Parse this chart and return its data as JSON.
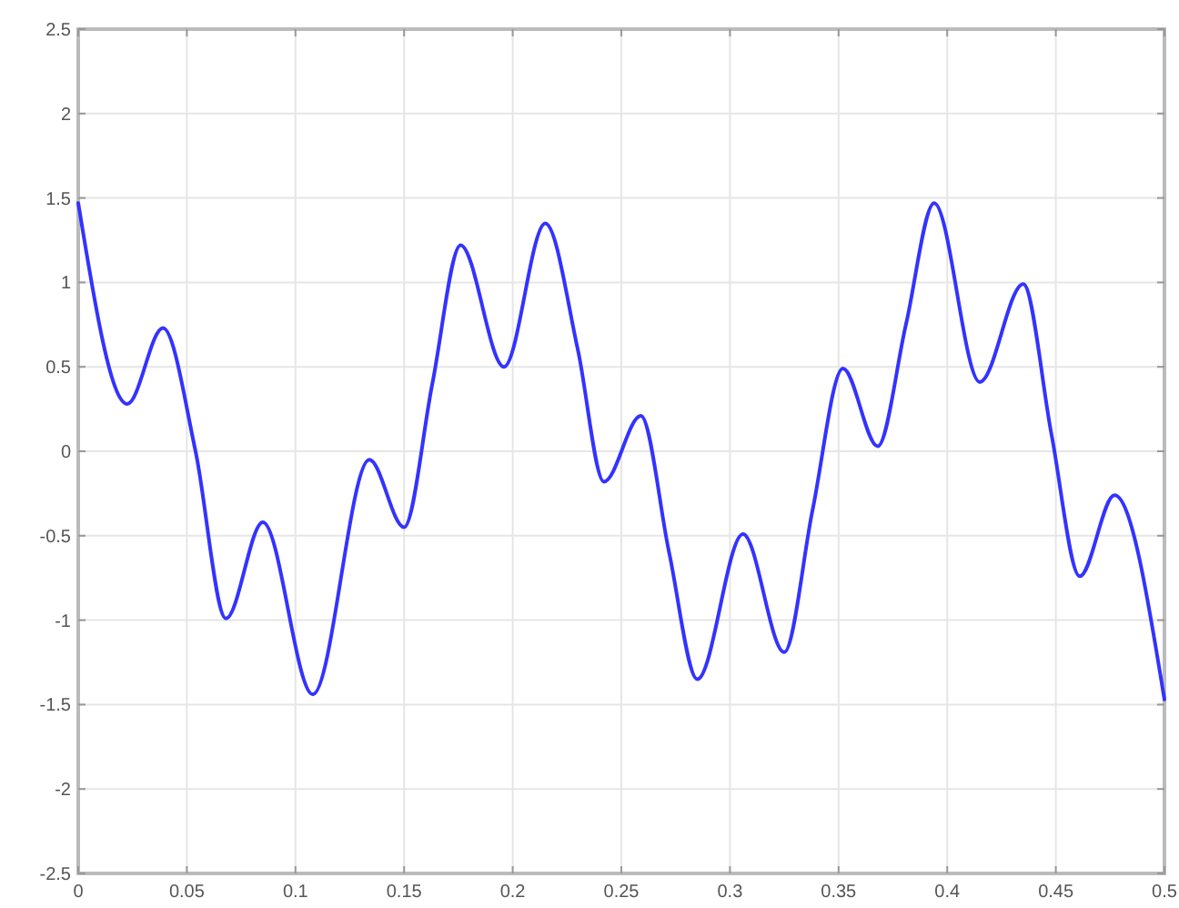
{
  "chart_data": {
    "type": "line",
    "x": [
      0,
      0.0226,
      0.039,
      0.054,
      0.068,
      0.085,
      0.108,
      0.134,
      0.15,
      0.163,
      0.176,
      0.196,
      0.215,
      0.23,
      0.242,
      0.259,
      0.272,
      0.285,
      0.306,
      0.325,
      0.338,
      0.352,
      0.368,
      0.381,
      0.394,
      0.415,
      0.435,
      0.448,
      0.461,
      0.477,
      0.5
    ],
    "series": [
      {
        "color": "#3333ff",
        "values": [
          1.47,
          0.28,
          0.73,
          0,
          -0.99,
          -0.42,
          -1.44,
          -0.05,
          -0.45,
          0.4,
          1.22,
          0.5,
          1.35,
          0.6,
          -0.18,
          0.21,
          -0.6,
          -1.35,
          -0.49,
          -1.19,
          -0.35,
          0.49,
          0.03,
          0.75,
          1.47,
          0.41,
          0.99,
          0.1,
          -0.74,
          -0.26,
          -1.47
        ]
      }
    ],
    "xlim": [
      0,
      0.5
    ],
    "xticks": [
      0,
      0.05,
      0.1,
      0.15,
      0.2,
      0.25,
      0.3,
      0.35,
      0.4,
      0.45,
      0.5
    ],
    "ylim": [
      -2.5,
      2.5
    ],
    "yticks": [
      -2.5,
      -2,
      -1.5,
      -1,
      -0.5,
      0,
      0.5,
      1,
      1.5,
      2,
      2.5
    ],
    "grid": true,
    "marker": "none",
    "line_style": "solid"
  }
}
